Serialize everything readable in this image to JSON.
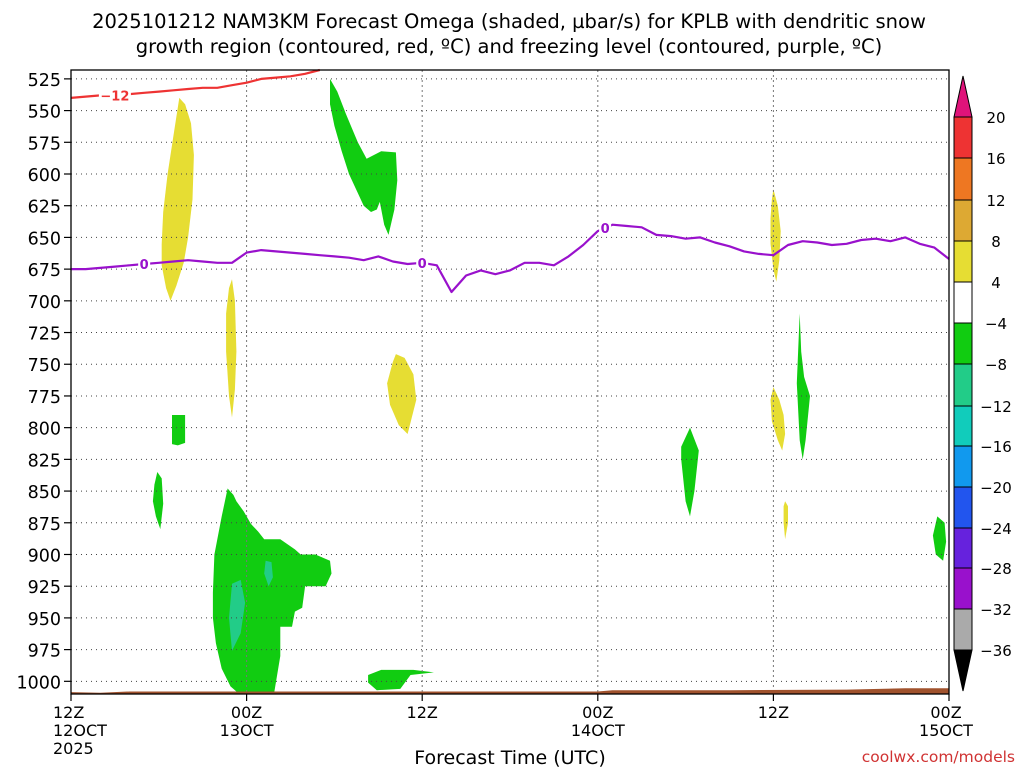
{
  "chart_data": {
    "type": "time-height",
    "title_line1": "2025101212 NAM3KM Forecast Omega (shaded, µbar/s) for KPLB with dendritic snow",
    "title_line2": "growth region (contoured, red, ºC) and freezing level (contoured, purple, ºC)",
    "xlabel": "Forecast Time (UTC)",
    "credit": "coolwx.com/models",
    "x_range_hours": [
      0,
      60
    ],
    "y_range_hPa": [
      1010,
      518
    ],
    "pressure_levels": [
      525,
      550,
      575,
      600,
      625,
      650,
      675,
      700,
      725,
      750,
      775,
      800,
      825,
      850,
      875,
      900,
      925,
      950,
      975,
      1000
    ],
    "x_ticks": [
      {
        "hour": 0,
        "line1": "12Z",
        "line2": "12OCT",
        "line3": "2025"
      },
      {
        "hour": 12,
        "line1": "00Z",
        "line2": "13OCT",
        "line3": ""
      },
      {
        "hour": 24,
        "line1": "12Z",
        "line2": "",
        "line3": ""
      },
      {
        "hour": 36,
        "line1": "00Z",
        "line2": "14OCT",
        "line3": ""
      },
      {
        "hour": 48,
        "line1": "12Z",
        "line2": "",
        "line3": ""
      },
      {
        "hour": 60,
        "line1": "00Z",
        "line2": "15OCT",
        "line3": ""
      }
    ],
    "colorbar": {
      "labels": [
        "20",
        "16",
        "12",
        "8",
        "4",
        "−4",
        "−8",
        "−12",
        "−16",
        "−20",
        "−24",
        "−28",
        "−32",
        "−36"
      ],
      "bins": [
        {
          "range": "16 to 20",
          "color": "#ee3333"
        },
        {
          "range": "12 to 16",
          "color": "#ee7722"
        },
        {
          "range": "8 to 12",
          "color": "#dda933"
        },
        {
          "range": "4 to 8",
          "color": "#e6dd33"
        },
        {
          "range": "-4 to 4",
          "color": "#ffffff"
        },
        {
          "range": "-8 to -4",
          "color": "#11cc11"
        },
        {
          "range": "-12 to -8",
          "color": "#22cc88"
        },
        {
          "range": "-16 to -12",
          "color": "#11ccbb"
        },
        {
          "range": "-20 to -16",
          "color": "#1199ee"
        },
        {
          "range": "-24 to -20",
          "color": "#2255ee"
        },
        {
          "range": "-28 to -24",
          "color": "#6622dd"
        },
        {
          "range": "-32 to -28",
          "color": "#9911cc"
        },
        {
          "range": "-36 to -32",
          "color": "#aaaaaa"
        }
      ],
      "over_color": "#e0137a",
      "under_color": "#000000"
    },
    "ground_color": "#a0522d",
    "freezing_level": {
      "label": "0",
      "color": "#9911cc",
      "hours": [
        0,
        1,
        2,
        3,
        4,
        5,
        6,
        7,
        8,
        9,
        10,
        11,
        12,
        13,
        14,
        15,
        16,
        17,
        18,
        19,
        20,
        21,
        22,
        23,
        24,
        25,
        26,
        27,
        28,
        29,
        30,
        31,
        32,
        33,
        34,
        35,
        36,
        37,
        38,
        39,
        40,
        41,
        42,
        43,
        44,
        45,
        46,
        47,
        48,
        49,
        50,
        51,
        52,
        53,
        54,
        55,
        56,
        57,
        58,
        59,
        60
      ],
      "pressure": [
        675,
        675,
        674,
        673,
        672,
        671,
        670,
        669,
        668,
        669,
        670,
        670,
        662,
        660,
        661,
        662,
        663,
        664,
        665,
        666,
        668,
        665,
        669,
        671,
        670,
        672,
        693,
        680,
        676,
        679,
        676,
        670,
        670,
        672,
        665,
        656,
        645,
        640,
        641,
        642,
        648,
        649,
        651,
        650,
        654,
        657,
        661,
        663,
        664,
        656,
        653,
        654,
        656,
        655,
        652,
        651,
        653,
        650,
        655,
        658,
        667
      ],
      "label_hours": [
        5,
        24,
        36.5
      ]
    },
    "dgz_minus12": {
      "label": "−12",
      "color": "#ee3333",
      "hours": [
        0,
        1,
        2,
        3,
        4,
        5,
        6,
        7,
        8,
        9,
        10,
        11,
        12,
        13,
        14,
        15,
        16,
        17
      ],
      "pressure": [
        540,
        539,
        538,
        538,
        537,
        536,
        535,
        534,
        533,
        532,
        532,
        530,
        528,
        525,
        524,
        523,
        521,
        518
      ],
      "label_hour": 3
    },
    "omega_regions": [
      {
        "value_bin": "4 to 8",
        "desc": "yellow column 06-08Z day1",
        "hours": [
          7.4,
          7.8,
          8.2,
          8.4,
          8.3,
          8.0,
          7.7,
          7.2,
          6.8,
          6.5,
          6.2,
          6.2,
          6.3,
          6.6,
          7.0
        ],
        "pressure": [
          540,
          545,
          560,
          585,
          620,
          650,
          670,
          688,
          700,
          690,
          672,
          655,
          630,
          600,
          570
        ]
      },
      {
        "value_bin": "4 to 8",
        "desc": "yellow strand 23-24Z",
        "hours": [
          11.0,
          11.2,
          11.3,
          11.2,
          11.0,
          10.8,
          10.6,
          10.6,
          10.8
        ],
        "pressure": [
          683,
          700,
          740,
          770,
          792,
          775,
          740,
          710,
          690
        ]
      },
      {
        "value_bin": "4 to 8",
        "desc": "yellow blob 10-11Z",
        "hours": [
          22.2,
          22.8,
          23.4,
          23.6,
          23.0,
          22.4,
          21.8,
          21.6,
          22.0
        ],
        "pressure": [
          742,
          745,
          758,
          778,
          805,
          798,
          782,
          765,
          748
        ]
      },
      {
        "value_bin": "4 to 8",
        "desc": "yellow sliver 12Z day2 upper",
        "hours": [
          48.0,
          48.3,
          48.5,
          48.4,
          48.2,
          48.0,
          47.8,
          47.8,
          47.9
        ],
        "pressure": [
          612,
          625,
          645,
          668,
          685,
          675,
          655,
          635,
          620
        ]
      },
      {
        "value_bin": "4 to 8",
        "desc": "yellow blob 12Z day2 lower",
        "hours": [
          48.0,
          48.4,
          48.7,
          48.8,
          48.6,
          48.3,
          47.9,
          47.8
        ],
        "pressure": [
          768,
          778,
          790,
          805,
          818,
          810,
          795,
          778
        ]
      },
      {
        "value_bin": "4 to 8",
        "desc": "yellow tiny 13Z",
        "hours": [
          48.8,
          49.0,
          49.0,
          48.8,
          48.7,
          48.7
        ],
        "pressure": [
          858,
          862,
          875,
          888,
          875,
          862
        ]
      },
      {
        "value_bin": "-8 to -4",
        "desc": "green upper 17-23Z",
        "hours": [
          17.7,
          18.2,
          18.8,
          19.6,
          20.2,
          21.2,
          22.2,
          22.3,
          22.1,
          21.7,
          21.4,
          21.1,
          20.9,
          20.5,
          20.0,
          19.6,
          19.0,
          18.5,
          18.0,
          17.7
        ],
        "pressure": [
          525,
          535,
          553,
          575,
          588,
          582,
          583,
          605,
          628,
          648,
          640,
          622,
          628,
          630,
          625,
          615,
          600,
          582,
          562,
          545
        ]
      },
      {
        "value_bin": "-8 to -4",
        "desc": "green near 800mb 08Z",
        "hours": [
          6.9,
          7.8,
          7.8,
          7.3,
          6.9
        ],
        "pressure": [
          790,
          790,
          812,
          814,
          813
        ]
      },
      {
        "value_bin": "-8 to -4",
        "desc": "green strand 06Z",
        "hours": [
          5.9,
          6.2,
          6.3,
          6.1,
          5.8,
          5.6,
          5.7
        ],
        "pressure": [
          835,
          840,
          860,
          880,
          870,
          858,
          845
        ]
      },
      {
        "value_bin": "-8 to -4",
        "desc": "green lower blob 21Z-05Z",
        "hours": [
          10.7,
          11.1,
          11.3,
          11.8,
          12.3,
          12.8,
          13.2,
          14.3,
          15.3,
          15.7,
          16.7,
          17.7,
          17.8,
          17.4,
          16.0,
          15.8,
          15.3,
          15.1,
          14.3,
          14.3,
          13.9,
          13.3,
          12.6,
          11.3,
          10.9,
          10.3,
          9.9,
          9.7,
          9.7,
          9.8,
          10.3
        ],
        "pressure": [
          848,
          853,
          858,
          866,
          876,
          882,
          888,
          888,
          896,
          900,
          900,
          905,
          915,
          925,
          925,
          942,
          945,
          957,
          957,
          980,
          1008,
          1010,
          1009,
          1008,
          1004,
          990,
          970,
          950,
          930,
          900,
          870
        ]
      },
      {
        "value_bin": "-8 to -4",
        "desc": "green near 1000mb 10Z",
        "hours": [
          20.3,
          21.2,
          23.4,
          24.8,
          23.2,
          22.5,
          20.9,
          20.3
        ],
        "pressure": [
          995,
          991,
          991,
          993,
          995,
          1006,
          1007,
          1001
        ]
      },
      {
        "value_bin": "-8 to -4",
        "desc": "green 06Z day2",
        "hours": [
          41.7,
          42.3,
          42.9,
          42.6,
          42.3,
          42.0,
          41.7
        ],
        "pressure": [
          815,
          800,
          818,
          850,
          870,
          858,
          825
        ]
      },
      {
        "value_bin": "-8 to -4",
        "desc": "green strand 14Z day2",
        "hours": [
          49.8,
          49.9,
          50.1,
          50.5,
          50.2,
          50.0,
          49.8,
          49.6
        ],
        "pressure": [
          710,
          740,
          760,
          775,
          810,
          825,
          810,
          765
        ]
      },
      {
        "value_bin": "-8 to -4",
        "desc": "green right edge",
        "hours": [
          59.2,
          59.7,
          59.8,
          59.6,
          59.1,
          58.9
        ],
        "pressure": [
          870,
          875,
          890,
          905,
          900,
          885
        ]
      },
      {
        "value_bin": "-12 to -8",
        "desc": "teal core 00Z",
        "hours": [
          11.0,
          11.6,
          11.9,
          11.6,
          11.0,
          10.8
        ],
        "pressure": [
          923,
          920,
          938,
          962,
          976,
          950
        ]
      },
      {
        "value_bin": "-12 to -8",
        "desc": "teal dot 02Z",
        "hours": [
          13.3,
          13.7,
          13.8,
          13.5,
          13.2
        ],
        "pressure": [
          905,
          906,
          918,
          925,
          915
        ]
      }
    ]
  }
}
